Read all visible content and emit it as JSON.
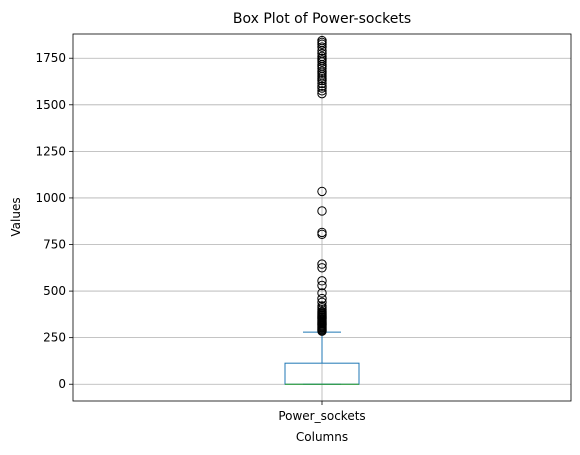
{
  "chart_data": {
    "type": "box",
    "title": "Box Plot of Power-sockets",
    "xlabel": "Columns",
    "ylabel": "Values",
    "categories": [
      "Power_sockets"
    ],
    "ylim": [
      -90,
      1880
    ],
    "yticks": [
      0,
      250,
      500,
      750,
      1000,
      1250,
      1500,
      1750
    ],
    "grid": true,
    "series": [
      {
        "box": {
          "whisker_low": 0,
          "q1": 0,
          "median": 0,
          "q3": 113,
          "whisker_high": 280
        },
        "fliers": [
          285,
          290,
          295,
          300,
          305,
          310,
          315,
          320,
          325,
          330,
          335,
          340,
          345,
          350,
          355,
          360,
          365,
          370,
          375,
          380,
          385,
          390,
          400,
          410,
          420,
          440,
          460,
          490,
          530,
          555,
          625,
          645,
          805,
          815,
          930,
          1035,
          1560,
          1575,
          1590,
          1600,
          1615,
          1630,
          1640,
          1650,
          1660,
          1670,
          1680,
          1695,
          1705,
          1715,
          1730,
          1740,
          1750,
          1760,
          1775,
          1790,
          1810,
          1825,
          1835,
          1845
        ]
      }
    ]
  }
}
